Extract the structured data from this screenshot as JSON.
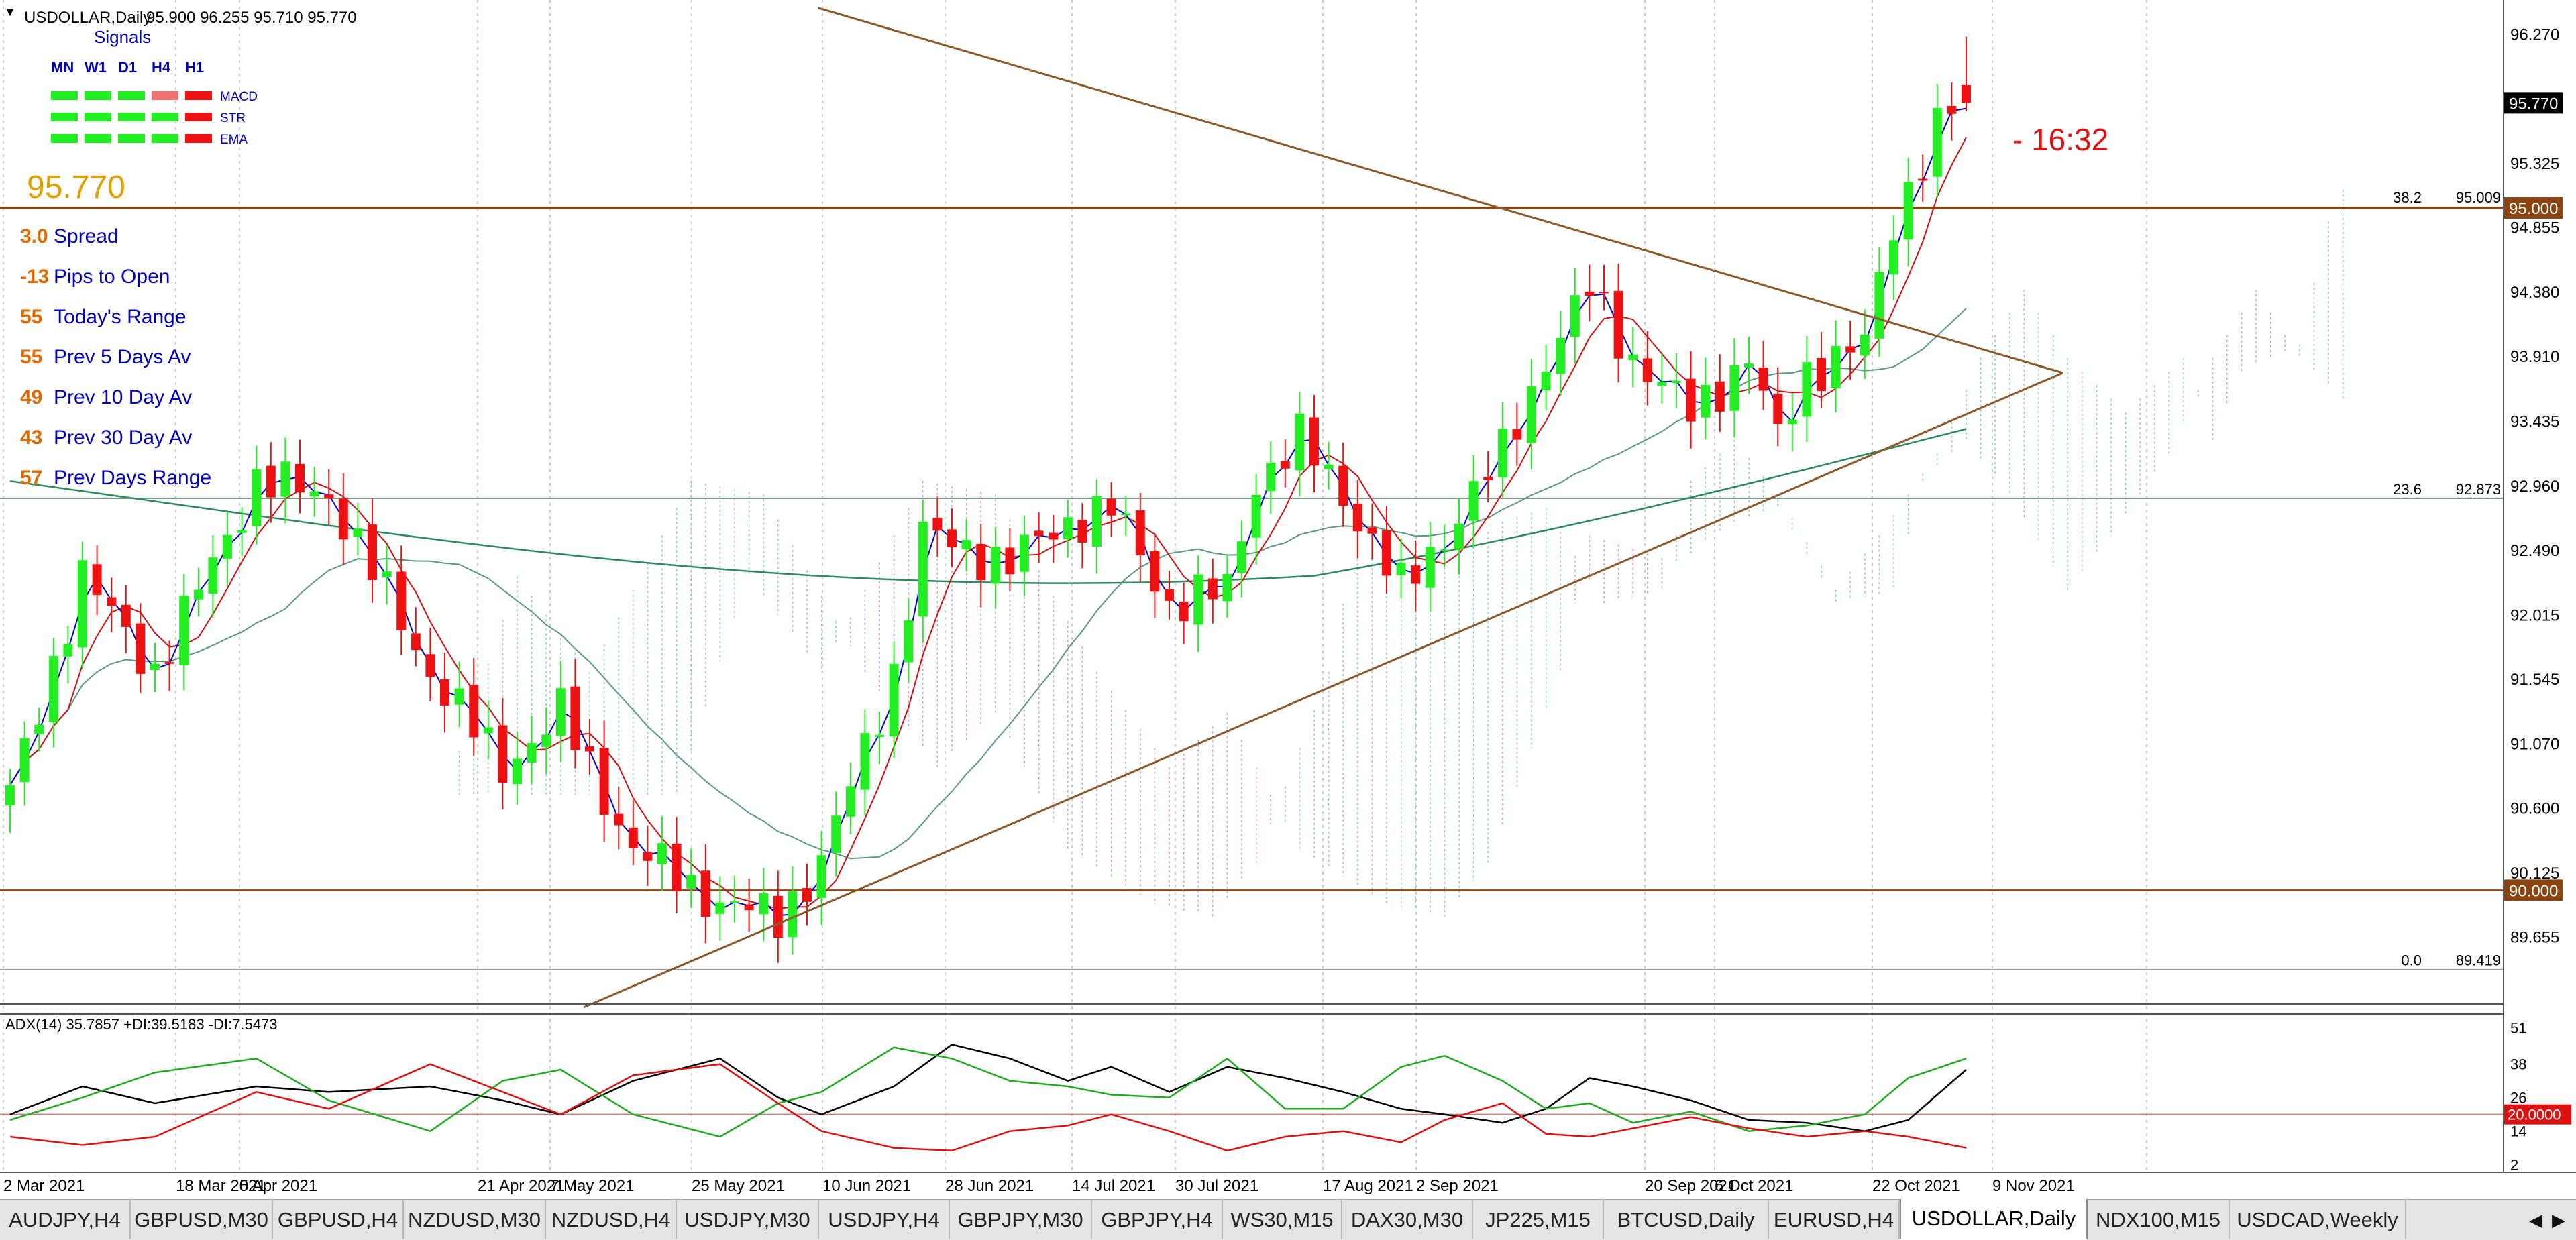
{
  "chart_data": [
    {
      "type": "candlestick",
      "title": "USDOLLAR,Daily",
      "ohlc_header": "95.900 96.255 95.710 95.770",
      "last_price": 95.77,
      "last_price_label": "95.770",
      "countdown": "- 16:32",
      "ylim": [
        89.25,
        96.45
      ],
      "y_ticks": [
        "96.270",
        "95.325",
        "94.855",
        "94.380",
        "93.910",
        "93.435",
        "92.960",
        "92.490",
        "92.015",
        "91.545",
        "91.070",
        "90.600",
        "90.125",
        "89.655"
      ],
      "x_ticks": [
        "2 Mar 2021",
        "18 Mar 2021",
        "5 Apr 2021",
        "21 Apr 2021",
        "7 May 2021",
        "25 May 2021",
        "10 Jun 2021",
        "28 Jun 2021",
        "14 Jul 2021",
        "30 Jul 2021",
        "17 Aug 2021",
        "2 Sep 2021",
        "20 Sep 2021",
        "6 Oct 2021",
        "22 Oct 2021",
        "9 Nov 2021"
      ],
      "horizontal_lines": [
        {
          "value": 95.0,
          "label": "95.000"
        },
        {
          "value": 90.0,
          "label": "90.000"
        }
      ],
      "fibonacci": [
        {
          "level": "38.2",
          "price": "95.009",
          "value": 95.009
        },
        {
          "level": "23.6",
          "price": "92.873",
          "value": 92.873
        },
        {
          "level": "0.0",
          "price": "89.419",
          "value": 89.419
        }
      ],
      "candles_anchor_closes": [
        [
          0,
          90.7
        ],
        [
          5,
          92.3
        ],
        [
          10,
          91.6
        ],
        [
          17,
          93.0
        ],
        [
          22,
          92.9
        ],
        [
          29,
          91.6
        ],
        [
          34,
          90.9
        ],
        [
          38,
          91.3
        ],
        [
          43,
          90.3
        ],
        [
          49,
          89.9
        ],
        [
          53,
          89.8
        ],
        [
          56,
          90.2
        ],
        [
          61,
          91.6
        ],
        [
          63,
          92.6
        ],
        [
          69,
          92.4
        ],
        [
          73,
          92.7
        ],
        [
          76,
          92.8
        ],
        [
          80,
          92.1
        ],
        [
          84,
          92.2
        ],
        [
          86,
          93.0
        ],
        [
          89,
          93.3
        ],
        [
          92,
          92.9
        ],
        [
          96,
          92.2
        ],
        [
          99,
          92.6
        ],
        [
          103,
          93.2
        ],
        [
          106,
          93.9
        ],
        [
          109,
          94.4
        ],
        [
          112,
          93.9
        ],
        [
          116,
          93.5
        ],
        [
          120,
          93.9
        ],
        [
          122,
          93.3
        ],
        [
          124,
          93.8
        ],
        [
          128,
          94.0
        ],
        [
          130,
          94.9
        ],
        [
          133,
          95.6
        ],
        [
          135,
          95.77
        ]
      ]
    },
    {
      "type": "line",
      "title": "ADX(14) 35.7857 +DI:39.5183 -DI:7.5473",
      "ylim": [
        0,
        54
      ],
      "y_ticks": [
        "51",
        "38",
        "26",
        "14",
        "2"
      ],
      "reference_line": {
        "value": 20,
        "label": "20.0000"
      },
      "series": [
        {
          "name": "ADX",
          "anchors": [
            [
              0,
              20
            ],
            [
              5,
              30
            ],
            [
              10,
              24
            ],
            [
              17,
              30
            ],
            [
              22,
              28
            ],
            [
              29,
              30
            ],
            [
              34,
              25
            ],
            [
              38,
              20
            ],
            [
              43,
              32
            ],
            [
              49,
              40
            ],
            [
              53,
              26
            ],
            [
              56,
              20
            ],
            [
              61,
              30
            ],
            [
              65,
              45
            ],
            [
              69,
              40
            ],
            [
              73,
              32
            ],
            [
              76,
              37
            ],
            [
              80,
              28
            ],
            [
              84,
              37
            ],
            [
              88,
              33
            ],
            [
              92,
              28
            ],
            [
              96,
              22
            ],
            [
              99,
              20
            ],
            [
              103,
              17
            ],
            [
              106,
              22
            ],
            [
              109,
              33
            ],
            [
              112,
              30
            ],
            [
              116,
              25
            ],
            [
              120,
              18
            ],
            [
              124,
              17
            ],
            [
              128,
              14
            ],
            [
              131,
              18
            ],
            [
              135,
              36
            ]
          ]
        },
        {
          "name": "+DI",
          "anchors": [
            [
              0,
              18
            ],
            [
              5,
              26
            ],
            [
              10,
              35
            ],
            [
              17,
              40
            ],
            [
              22,
              25
            ],
            [
              29,
              14
            ],
            [
              34,
              32
            ],
            [
              38,
              36
            ],
            [
              43,
              20
            ],
            [
              49,
              12
            ],
            [
              53,
              24
            ],
            [
              56,
              28
            ],
            [
              61,
              44
            ],
            [
              65,
              40
            ],
            [
              69,
              32
            ],
            [
              73,
              30
            ],
            [
              76,
              27
            ],
            [
              80,
              26
            ],
            [
              84,
              40
            ],
            [
              88,
              22
            ],
            [
              92,
              22
            ],
            [
              96,
              37
            ],
            [
              99,
              41
            ],
            [
              103,
              32
            ],
            [
              106,
              22
            ],
            [
              109,
              24
            ],
            [
              112,
              17
            ],
            [
              116,
              21
            ],
            [
              120,
              14
            ],
            [
              124,
              16
            ],
            [
              128,
              20
            ],
            [
              131,
              33
            ],
            [
              135,
              40
            ]
          ]
        },
        {
          "name": "-DI",
          "anchors": [
            [
              0,
              12
            ],
            [
              5,
              9
            ],
            [
              10,
              12
            ],
            [
              17,
              28
            ],
            [
              22,
              22
            ],
            [
              29,
              38
            ],
            [
              34,
              28
            ],
            [
              38,
              20
            ],
            [
              43,
              34
            ],
            [
              49,
              38
            ],
            [
              53,
              24
            ],
            [
              56,
              14
            ],
            [
              61,
              8
            ],
            [
              65,
              7
            ],
            [
              69,
              14
            ],
            [
              73,
              16
            ],
            [
              76,
              20
            ],
            [
              80,
              14
            ],
            [
              84,
              7
            ],
            [
              88,
              12
            ],
            [
              92,
              14
            ],
            [
              96,
              10
            ],
            [
              99,
              18
            ],
            [
              103,
              24
            ],
            [
              106,
              13
            ],
            [
              109,
              12
            ],
            [
              112,
              15
            ],
            [
              116,
              19
            ],
            [
              120,
              15
            ],
            [
              124,
              12
            ],
            [
              128,
              14
            ],
            [
              131,
              12
            ],
            [
              135,
              8
            ]
          ]
        }
      ]
    }
  ],
  "signals": {
    "title": "Signals",
    "columns": [
      "MN",
      "W1",
      "D1",
      "H4",
      "H1"
    ],
    "rows": [
      {
        "label": "MACD",
        "colors": [
          "#22ee22",
          "#22ee22",
          "#22ee22",
          "#f07070",
          "#ee1111"
        ]
      },
      {
        "label": "STR",
        "colors": [
          "#22ee22",
          "#22ee22",
          "#22ee22",
          "#22ee22",
          "#ee1111"
        ]
      },
      {
        "label": "EMA",
        "colors": [
          "#22ee22",
          "#22ee22",
          "#22ee22",
          "#22ee22",
          "#ee1111"
        ]
      }
    ]
  },
  "stats": [
    {
      "value": "3.0",
      "label": "Spread"
    },
    {
      "value": "-13",
      "label": "Pips to Open"
    },
    {
      "value": "55",
      "label": "Today's Range"
    },
    {
      "value": "55",
      "label": "Prev 5 Days Av"
    },
    {
      "value": "49",
      "label": "Prev 10 Day Av"
    },
    {
      "value": "43",
      "label": "Prev 30 Day Av"
    },
    {
      "value": "57",
      "label": "Prev Days Range"
    }
  ],
  "tabs": [
    "AUDJPY,H4",
    "GBPUSD,M30",
    "GBPUSD,H4",
    "NZDUSD,M30",
    "NZDUSD,H4",
    "USDJPY,M30",
    "USDJPY,H4",
    "GBPJPY,M30",
    "GBPJPY,H4",
    "WS30,M15",
    "DAX30,M30",
    "JP225,M15",
    "BTCUSD,Daily",
    "EURUSD,H4",
    "USDOLLAR,Daily",
    "NDX100,M15",
    "USDCAD,Weekly"
  ],
  "active_tab": "USDOLLAR,Daily",
  "colors": {
    "bull": "#22ee22",
    "bear": "#ee1111",
    "ma_fast": "#0000cc",
    "ma_mid": "#cc1111",
    "ma_slow": "#5a9a82",
    "ma_200": "#2e8a5a",
    "trendline": "#8b5a2b",
    "level_line": "#8b4513",
    "price_box": "#000000",
    "stat_value": "#e06a00",
    "stat_label": "#0000bb",
    "adx": "#000000",
    "plus_di": "#22aa22",
    "minus_di": "#dd1111",
    "cloud_bull": "#7fc8c0",
    "cloud_bear": "#d090d0"
  }
}
